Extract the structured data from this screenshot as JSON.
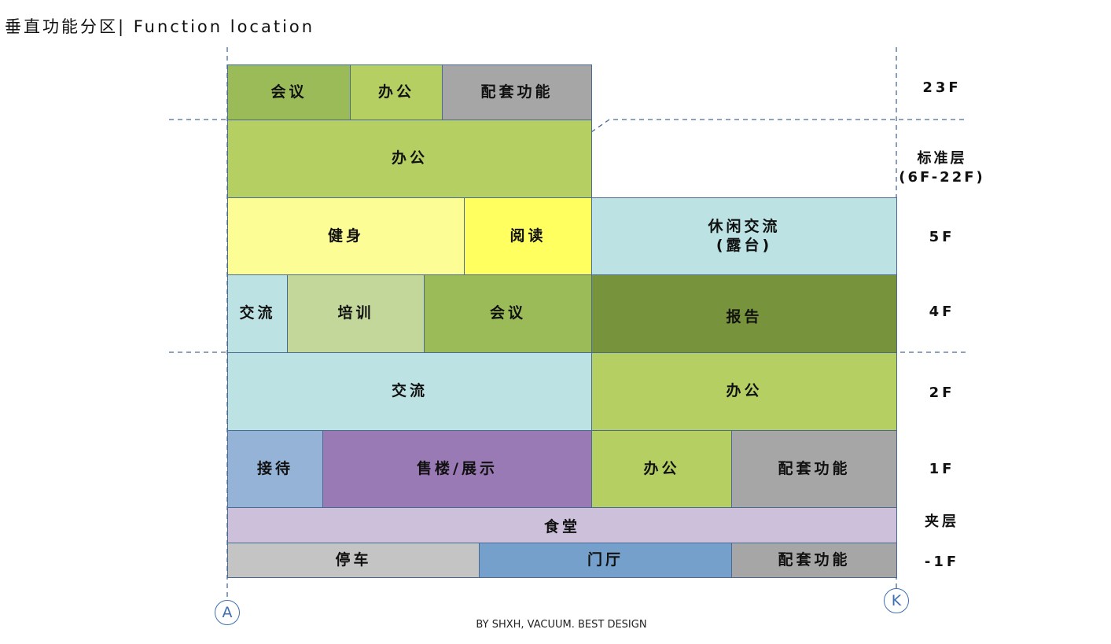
{
  "title": "垂直功能分区|  Function location",
  "colors": {
    "border": "#4a6a96",
    "green_dark": "#77933c",
    "green_mid": "#9bbb59",
    "green_light": "#b5cf63",
    "gray": "#a6a6a6",
    "cyan": "#bce2e3",
    "yellow_light": "#fdfd96",
    "yellow": "#ffff60",
    "sage": "#c4d79b",
    "blue": "#95b3d7",
    "purple": "#9a7ab4",
    "lavender": "#ccc0da",
    "light_gray": "#c4c4c4",
    "steel_blue": "#75a0cc"
  },
  "floors": {
    "f23": {
      "label": "23F",
      "cells": [
        "会议",
        "办公",
        "配套功能"
      ]
    },
    "standard": {
      "label": "标准层",
      "label2": "(6F-22F)",
      "cells": [
        "办公"
      ]
    },
    "f5": {
      "label": "5F",
      "cells": [
        "健身",
        "阅读",
        "休闲交流",
        "(露台)"
      ]
    },
    "f4": {
      "label": "4F",
      "cells": [
        "交流",
        "培训",
        "会议",
        "报告"
      ]
    },
    "f2": {
      "label": "2F",
      "cells": [
        "交流",
        "办公"
      ]
    },
    "f1": {
      "label": "1F",
      "cells": [
        "接待",
        "售楼/展示",
        "办公",
        "配套功能"
      ]
    },
    "mezz": {
      "label": "夹层",
      "cells": [
        "食堂"
      ]
    },
    "b1": {
      "label": "-1F",
      "cells": [
        "停车",
        "门厅",
        "配套功能"
      ]
    }
  },
  "axes": {
    "left": "A",
    "right": "K"
  },
  "footer": "BY SHXH, VACUUM. BEST DESIGN"
}
